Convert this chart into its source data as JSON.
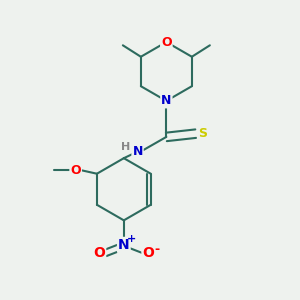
{
  "background_color": "#eef2ee",
  "bond_color": "#2d6b5e",
  "bond_width": 1.5,
  "atom_colors": {
    "O": "#ff0000",
    "N": "#0000cc",
    "S": "#cccc00",
    "C": "#2d6b5e",
    "H": "#888888"
  },
  "font_size": 9,
  "figsize": [
    3.0,
    3.0
  ],
  "dpi": 100
}
